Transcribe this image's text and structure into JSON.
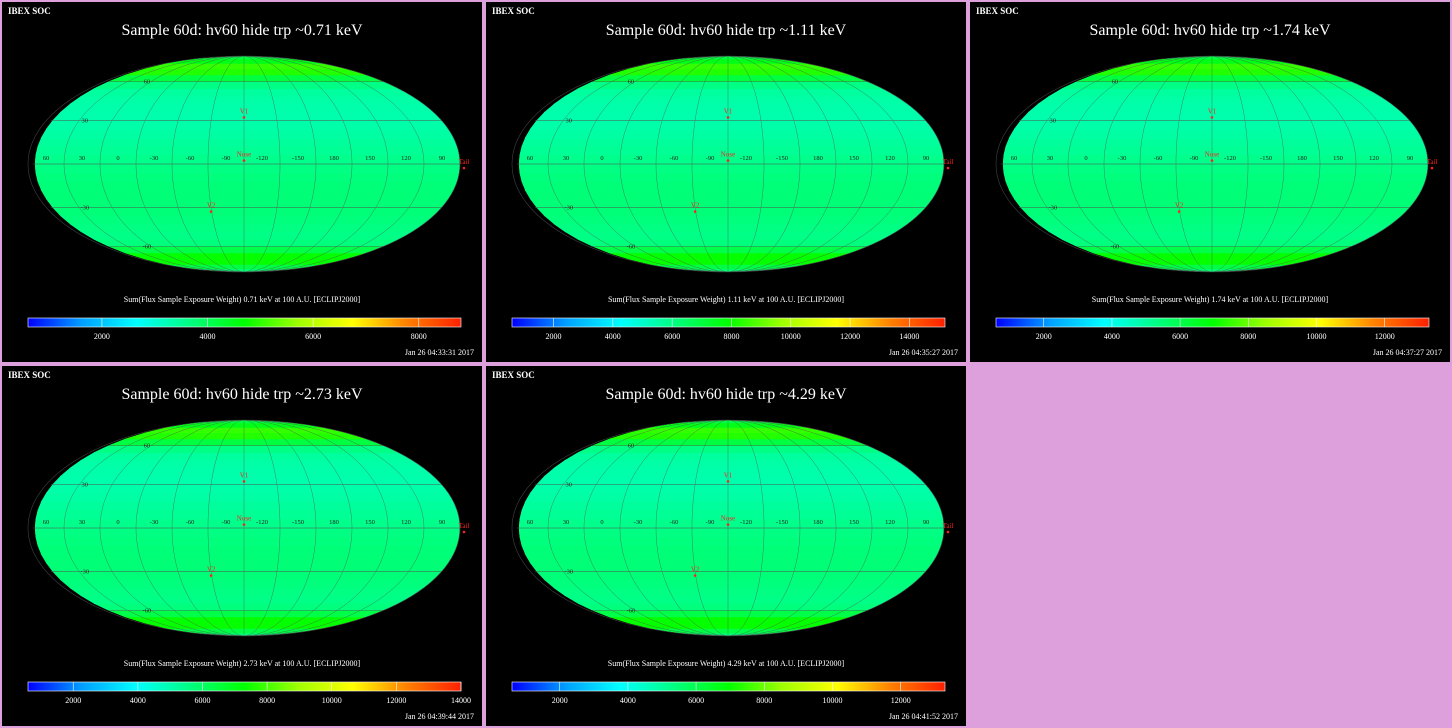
{
  "panels": [
    {
      "header": "IBEX SOC",
      "title": "Sample 60d: hv60 hide trp ~0.71 keV",
      "colorbar_label": "Sum(Flux Sample Exposure Weight)  0.71 keV at 100 A.U. [ECLIPJ2000]",
      "ticks": [
        "2000",
        "4000",
        "6000",
        "8000"
      ],
      "tick_values": [
        2000,
        4000,
        6000,
        8000
      ],
      "vmin": 600,
      "vmax": 8800,
      "timestamp": "Jan 26 04:33:31 2017"
    },
    {
      "header": "IBEX SOC",
      "title": "Sample 60d: hv60 hide trp ~1.11 keV",
      "colorbar_label": "Sum(Flux Sample Exposure Weight)  1.11 keV at 100 A.U. [ECLIPJ2000]",
      "ticks": [
        "2000",
        "4000",
        "6000",
        "8000",
        "10000",
        "12000",
        "14000"
      ],
      "tick_values": [
        2000,
        4000,
        6000,
        8000,
        10000,
        12000,
        14000
      ],
      "vmin": 600,
      "vmax": 15200,
      "timestamp": "Jan 26 04:35:27 2017"
    },
    {
      "header": "IBEX SOC",
      "title": "Sample 60d: hv60 hide trp ~1.74 keV",
      "colorbar_label": "Sum(Flux Sample Exposure Weight)  1.74 keV at 100 A.U. [ECLIPJ2000]",
      "ticks": [
        "2000",
        "4000",
        "6000",
        "8000",
        "10000",
        "12000"
      ],
      "tick_values": [
        2000,
        4000,
        6000,
        8000,
        10000,
        12000
      ],
      "vmin": 600,
      "vmax": 13300,
      "timestamp": "Jan 26 04:37:27 2017"
    },
    {
      "header": "IBEX SOC",
      "title": "Sample 60d: hv60 hide trp ~2.73 keV",
      "colorbar_label": "Sum(Flux Sample Exposure Weight)  2.73 keV at 100 A.U. [ECLIPJ2000]",
      "ticks": [
        "2000",
        "4000",
        "6000",
        "8000",
        "10000",
        "12000",
        "14000"
      ],
      "tick_values": [
        2000,
        4000,
        6000,
        8000,
        10000,
        12000,
        14000
      ],
      "vmin": 600,
      "vmax": 14000,
      "timestamp": "Jan 26 04:39:44 2017"
    },
    {
      "header": "IBEX SOC",
      "title": "Sample 60d: hv60 hide trp ~4.29 keV",
      "colorbar_label": "Sum(Flux Sample Exposure Weight)  4.29 keV at 100 A.U. [ECLIPJ2000]",
      "ticks": [
        "2000",
        "4000",
        "6000",
        "8000",
        "10000",
        "12000"
      ],
      "tick_values": [
        2000,
        4000,
        6000,
        8000,
        10000,
        12000
      ],
      "vmin": 600,
      "vmax": 13300,
      "timestamp": "Jan 26 04:41:52 2017"
    }
  ],
  "chart_data": {
    "type": "heatmap",
    "projection": "Mollweide",
    "longitude_labels": [
      {
        "label": "60",
        "lon": 60
      },
      {
        "label": "30",
        "lon": 30
      },
      {
        "label": "0",
        "lon": 0
      },
      {
        "label": "-30",
        "lon": -30
      },
      {
        "label": "-60",
        "lon": -60
      },
      {
        "label": "-90",
        "lon": -90
      },
      {
        "label": "-120",
        "lon": -120
      },
      {
        "label": "-150",
        "lon": -150
      },
      {
        "label": "180",
        "lon": 180
      },
      {
        "label": "150",
        "lon": 150
      },
      {
        "label": "120",
        "lon": 120
      },
      {
        "label": "90",
        "lon": 90
      }
    ],
    "latitude_labels": [
      {
        "label": "60",
        "lat": 60
      },
      {
        "label": "30",
        "lat": 30
      },
      {
        "label": "-30",
        "lat": -30
      },
      {
        "label": "-60",
        "lat": -60
      }
    ],
    "markers": [
      {
        "label": "V1",
        "lon": -105,
        "lat": 35
      },
      {
        "label": "Nose",
        "lon": -105,
        "lat": 5
      },
      {
        "label": "V2",
        "lon": -75,
        "lat": -30
      },
      {
        "label": "Tail",
        "lon": 75,
        "lat": 0
      }
    ],
    "colormap": [
      "#0000ff",
      "#00a0ff",
      "#00ffff",
      "#00ff80",
      "#00ff00",
      "#a0ff00",
      "#ffff00",
      "#ff8000",
      "#ff2000"
    ],
    "colors": {
      "background": "#000000",
      "frame": "#dda0dd",
      "text": "#ffffff",
      "marker": "#ff2020",
      "grid": "#505050"
    }
  }
}
